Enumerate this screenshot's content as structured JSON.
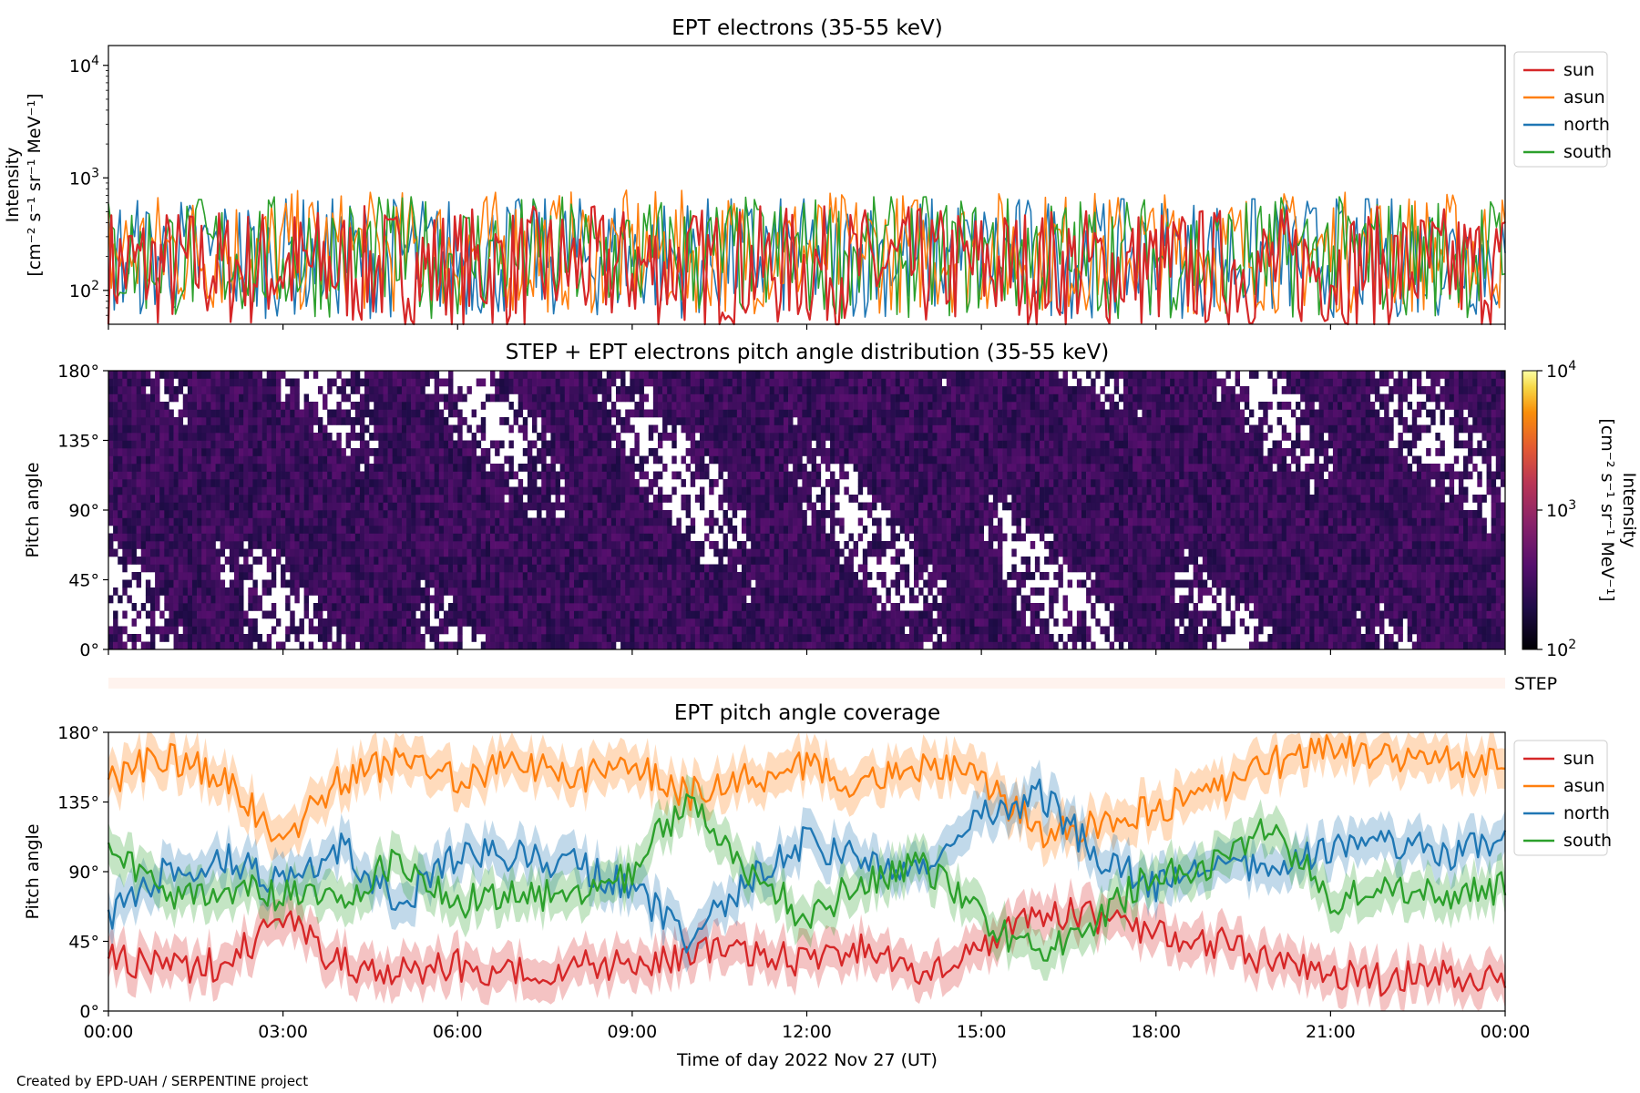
{
  "credit": "Created by EPD-UAH / SERPENTINE project",
  "colors": {
    "sun": "#d62728",
    "asun": "#ff7f0e",
    "north": "#1f77b4",
    "south": "#2ca02c",
    "step_bar": "#fff3ee"
  },
  "chart_data": [
    {
      "type": "line",
      "title": "EPT electrons (35-55 keV)",
      "ylabel_line1": "Intensity",
      "ylabel_line2": "[cm⁻² s⁻¹ sr⁻¹ MeV⁻¹]",
      "yscale": "log",
      "ylim": [
        50,
        15000
      ],
      "yticks": [
        {
          "value": 100,
          "base": "10",
          "exp": "2"
        },
        {
          "value": 1000,
          "base": "10",
          "exp": "3"
        },
        {
          "value": 10000,
          "base": "10",
          "exp": "4"
        }
      ],
      "xlim_hours": [
        0,
        24
      ],
      "legend": {
        "placement": "outside-right",
        "entries": [
          "sun",
          "asun",
          "north",
          "south"
        ]
      },
      "series": [
        {
          "name": "sun",
          "color": "#d62728",
          "typical_value": 160,
          "min_value": 50,
          "max_value": 650
        },
        {
          "name": "asun",
          "color": "#ff7f0e",
          "typical_value": 220,
          "min_value": 50,
          "max_value": 900
        },
        {
          "name": "north",
          "color": "#1f77b4",
          "typical_value": 200,
          "min_value": 50,
          "max_value": 650
        },
        {
          "name": "south",
          "color": "#2ca02c",
          "typical_value": 200,
          "min_value": 50,
          "max_value": 680
        }
      ]
    },
    {
      "type": "heatmap",
      "title": "STEP + EPT electrons pitch angle distribution (35-55 keV)",
      "ylabel": "Pitch angle",
      "ylim": [
        0,
        180
      ],
      "yticks": [
        "0°",
        "45°",
        "90°",
        "135°",
        "180°"
      ],
      "xlim_hours": [
        0,
        24
      ],
      "colorbar": {
        "label_line1": "Intensity",
        "label_line2": "[cm⁻² s⁻¹ sr⁻¹ MeV⁻¹]",
        "scale": "log",
        "range": [
          100,
          10000
        ],
        "ticks": [
          {
            "value": 100,
            "base": "10",
            "exp": "2"
          },
          {
            "value": 1000,
            "base": "10",
            "exp": "3"
          },
          {
            "value": 10000,
            "base": "10",
            "exp": "4"
          }
        ],
        "colormap": "inferno"
      },
      "typical_intensity": 280
    },
    {
      "type": "bar",
      "label": "STEP",
      "color": "#fff3ee"
    },
    {
      "type": "area",
      "title": "EPT pitch angle coverage",
      "ylabel": "Pitch angle",
      "xlabel": "Time of day 2022 Nov 27 (UT)",
      "ylim": [
        0,
        180
      ],
      "yticks": [
        "0°",
        "45°",
        "90°",
        "135°",
        "180°"
      ],
      "xticks": [
        "00:00",
        "03:00",
        "06:00",
        "09:00",
        "12:00",
        "15:00",
        "18:00",
        "21:00",
        "00:00"
      ],
      "xlim_hours": [
        0,
        24
      ],
      "legend": {
        "placement": "outside-right",
        "entries": [
          "sun",
          "asun",
          "north",
          "south"
        ]
      },
      "series": [
        {
          "name": "sun",
          "color": "#d62728",
          "x_hours": [
            0,
            1,
            2,
            3,
            4,
            5,
            6,
            7,
            8,
            9,
            10,
            11,
            12,
            13,
            14,
            15,
            16,
            17,
            18,
            19,
            20,
            21,
            22,
            23,
            24
          ],
          "y": [
            35,
            28,
            30,
            60,
            30,
            28,
            30,
            25,
            28,
            30,
            35,
            40,
            30,
            40,
            25,
            40,
            65,
            60,
            50,
            45,
            30,
            25,
            20,
            25,
            20
          ]
        },
        {
          "name": "asun",
          "color": "#ff7f0e",
          "x_hours": [
            0,
            1,
            2,
            3,
            4,
            5,
            6,
            7,
            8,
            9,
            10,
            11,
            12,
            13,
            14,
            15,
            16,
            17,
            18,
            19,
            20,
            21,
            22,
            23,
            24
          ],
          "y": [
            150,
            165,
            150,
            110,
            150,
            160,
            150,
            160,
            150,
            160,
            140,
            150,
            160,
            145,
            160,
            150,
            115,
            120,
            130,
            140,
            160,
            170,
            165,
            160,
            160
          ]
        },
        {
          "name": "north",
          "color": "#1f77b4",
          "x_hours": [
            0,
            1,
            2,
            3,
            4,
            5,
            6,
            7,
            8,
            9,
            10,
            11,
            12,
            13,
            14,
            15,
            16,
            17,
            18,
            19,
            20,
            21,
            22,
            23,
            24
          ],
          "y": [
            60,
            90,
            100,
            80,
            105,
            70,
            100,
            100,
            95,
            80,
            45,
            85,
            110,
            95,
            90,
            125,
            140,
            100,
            80,
            95,
            90,
            105,
            110,
            100,
            110
          ]
        },
        {
          "name": "south",
          "color": "#2ca02c",
          "x_hours": [
            0,
            1,
            2,
            3,
            4,
            5,
            6,
            7,
            8,
            9,
            10,
            11,
            12,
            13,
            14,
            15,
            16,
            17,
            18,
            19,
            20,
            21,
            22,
            23,
            24
          ],
          "y": [
            110,
            70,
            80,
            75,
            70,
            100,
            70,
            80,
            70,
            90,
            140,
            90,
            60,
            85,
            95,
            60,
            35,
            60,
            90,
            95,
            120,
            70,
            80,
            75,
            80
          ]
        }
      ]
    }
  ]
}
